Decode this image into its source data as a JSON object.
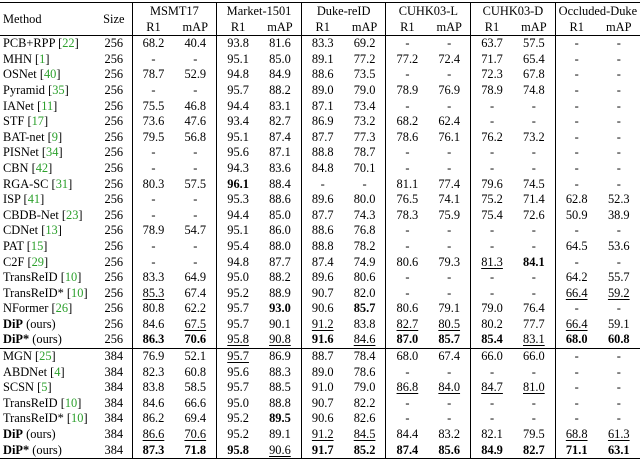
{
  "header": {
    "method": "Method",
    "size": "Size",
    "datasets": [
      "MSMT17",
      "Market-1501",
      "Duke-reID",
      "CUHK03-L",
      "CUHK03-D",
      "Occluded-Duke"
    ],
    "metrics": [
      "R1",
      "mAP"
    ]
  },
  "groups": [
    {
      "rows": [
        {
          "name": "PCB+RPP",
          "cite": "22",
          "size": "256",
          "vals": [
            "68.2",
            "40.4",
            "93.8",
            "81.6",
            "83.3",
            "69.2",
            "-",
            "-",
            "63.7",
            "57.5",
            "-",
            "-"
          ]
        },
        {
          "name": "MHN",
          "cite": "1",
          "size": "256",
          "vals": [
            "-",
            "-",
            "95.1",
            "85.0",
            "89.1",
            "77.2",
            "77.2",
            "72.4",
            "71.7",
            "65.4",
            "-",
            "-"
          ]
        },
        {
          "name": "OSNet",
          "cite": "40",
          "size": "256",
          "vals": [
            "78.7",
            "52.9",
            "94.8",
            "84.9",
            "88.6",
            "73.5",
            "-",
            "-",
            "72.3",
            "67.8",
            "-",
            "-"
          ]
        },
        {
          "name": "Pyramid",
          "cite": "35",
          "size": "256",
          "vals": [
            "-",
            "-",
            "95.7",
            "88.2",
            "89.0",
            "79.0",
            "78.9",
            "76.9",
            "78.9",
            "74.8",
            "-",
            "-"
          ]
        },
        {
          "name": "IANet",
          "cite": "11",
          "size": "256",
          "vals": [
            "75.5",
            "46.8",
            "94.4",
            "83.1",
            "87.1",
            "73.4",
            "-",
            "-",
            "-",
            "-",
            "-",
            "-"
          ]
        },
        {
          "name": "STF",
          "cite": "17",
          "size": "256",
          "vals": [
            "73.6",
            "47.6",
            "93.4",
            "82.7",
            "86.9",
            "73.2",
            "68.2",
            "62.4",
            "-",
            "-",
            "-",
            "-"
          ]
        },
        {
          "name": "BAT-net",
          "cite": "9",
          "size": "256",
          "vals": [
            "79.5",
            "56.8",
            "95.1",
            "87.4",
            "87.7",
            "77.3",
            "78.6",
            "76.1",
            "76.2",
            "73.2",
            "-",
            "-"
          ]
        },
        {
          "name": "PISNet",
          "cite": "34",
          "size": "256",
          "vals": [
            "-",
            "-",
            "95.6",
            "87.1",
            "88.8",
            "78.7",
            "-",
            "-",
            "-",
            "-",
            "-",
            "-"
          ]
        },
        {
          "name": "CBN",
          "cite": "42",
          "size": "256",
          "vals": [
            "-",
            "-",
            "94.3",
            "83.6",
            "84.8",
            "70.1",
            "-",
            "-",
            "-",
            "-",
            "-",
            "-"
          ]
        },
        {
          "name": "RGA-SC",
          "cite": "31",
          "size": "256",
          "vals": [
            "80.3",
            "57.5",
            "96.1",
            "88.4",
            "-",
            "-",
            "81.1",
            "77.4",
            "79.6",
            "74.5",
            "-",
            "-"
          ]
        },
        {
          "name": "ISP",
          "cite": "41",
          "size": "256",
          "vals": [
            "-",
            "-",
            "95.3",
            "88.6",
            "89.6",
            "80.0",
            "76.5",
            "74.1",
            "75.2",
            "71.4",
            "62.8",
            "52.3"
          ]
        },
        {
          "name": "CBDB-Net",
          "cite": "23",
          "size": "256",
          "vals": [
            "-",
            "-",
            "94.4",
            "85.0",
            "87.7",
            "74.3",
            "78.3",
            "75.9",
            "75.4",
            "72.6",
            "50.9",
            "38.9"
          ]
        },
        {
          "name": "CDNet",
          "cite": "13",
          "size": "256",
          "vals": [
            "78.9",
            "54.7",
            "95.1",
            "86.0",
            "88.6",
            "76.8",
            "-",
            "-",
            "-",
            "-",
            "-",
            "-"
          ]
        },
        {
          "name": "PAT",
          "cite": "15",
          "size": "256",
          "vals": [
            "-",
            "-",
            "95.4",
            "88.0",
            "88.8",
            "78.2",
            "-",
            "-",
            "-",
            "-",
            "64.5",
            "53.6"
          ]
        },
        {
          "name": "C2F",
          "cite": "29",
          "size": "256",
          "vals": [
            "-",
            "-",
            "94.8",
            "87.7",
            "87.4",
            "74.9",
            "80.6",
            "79.3",
            "81.3",
            "84.1",
            "-",
            "-"
          ]
        },
        {
          "name": "TransReID",
          "cite": "10",
          "size": "256",
          "vals": [
            "83.3",
            "64.9",
            "95.0",
            "88.2",
            "89.6",
            "80.6",
            "-",
            "-",
            "-",
            "-",
            "64.2",
            "55.7"
          ]
        },
        {
          "name": "TransReID*",
          "cite": "10",
          "size": "256",
          "vals": [
            "85.3",
            "67.4",
            "95.2",
            "88.9",
            "90.7",
            "82.0",
            "-",
            "-",
            "-",
            "-",
            "66.4",
            "59.2"
          ]
        },
        {
          "name": "NFormer",
          "cite": "26",
          "size": "256",
          "vals": [
            "80.8",
            "62.2",
            "95.7",
            "93.0",
            "90.6",
            "85.7",
            "80.6",
            "79.1",
            "79.0",
            "76.4",
            "-",
            "-"
          ]
        },
        {
          "name": "DiP",
          "suffix": " (ours)",
          "size": "256",
          "vals": [
            "84.6",
            "67.5",
            "95.7",
            "90.1",
            "91.2",
            "83.8",
            "82.7",
            "80.5",
            "80.2",
            "77.7",
            "66.4",
            "59.1"
          ]
        },
        {
          "name": "DiP*",
          "suffix": " (ours)",
          "size": "256",
          "vals": [
            "86.3",
            "70.6",
            "95.8",
            "90.8",
            "91.6",
            "84.6",
            "87.0",
            "85.7",
            "85.4",
            "83.1",
            "68.0",
            "60.8"
          ]
        }
      ]
    },
    {
      "rows": [
        {
          "name": "MGN",
          "cite": "25",
          "size": "384",
          "vals": [
            "76.9",
            "52.1",
            "95.7",
            "86.9",
            "88.7",
            "78.4",
            "68.0",
            "67.4",
            "66.0",
            "66.0",
            "-",
            "-"
          ]
        },
        {
          "name": "ABDNet",
          "cite": "4",
          "size": "384",
          "vals": [
            "82.3",
            "60.8",
            "95.6",
            "88.3",
            "89.0",
            "78.6",
            "-",
            "-",
            "-",
            "-",
            "-",
            "-"
          ]
        },
        {
          "name": "SCSN",
          "cite": "5",
          "size": "384",
          "vals": [
            "83.8",
            "58.5",
            "95.7",
            "88.5",
            "91.0",
            "79.0",
            "86.8",
            "84.0",
            "84.7",
            "81.0",
            "-",
            "-"
          ]
        },
        {
          "name": "TransReID",
          "cite": "10",
          "size": "384",
          "vals": [
            "84.6",
            "66.6",
            "95.0",
            "88.8",
            "90.7",
            "82.2",
            "-",
            "-",
            "-",
            "-",
            "-",
            "-"
          ]
        },
        {
          "name": "TransReID*",
          "cite": "10",
          "size": "384",
          "vals": [
            "86.2",
            "69.4",
            "95.2",
            "89.5",
            "90.6",
            "82.6",
            "-",
            "-",
            "-",
            "-",
            "-",
            "-"
          ]
        },
        {
          "name": "DiP",
          "suffix": " (ours)",
          "size": "384",
          "vals": [
            "86.6",
            "70.6",
            "95.2",
            "89.1",
            "91.2",
            "84.5",
            "84.4",
            "83.2",
            "82.1",
            "79.5",
            "68.8",
            "61.3"
          ]
        },
        {
          "name": "DiP*",
          "suffix": " (ours)",
          "size": "384",
          "vals": [
            "87.3",
            "71.8",
            "95.8",
            "90.6",
            "91.7",
            "85.2",
            "87.4",
            "85.6",
            "84.9",
            "82.7",
            "71.1",
            "63.1"
          ]
        }
      ]
    }
  ],
  "bold": [
    [
      [
        9,
        2
      ],
      [
        17,
        3
      ],
      [
        17,
        5
      ],
      [
        19,
        0
      ],
      [
        19,
        1
      ],
      [
        19,
        4
      ],
      [
        19,
        6
      ],
      [
        19,
        7
      ],
      [
        19,
        8
      ],
      [
        19,
        10
      ],
      [
        19,
        11
      ],
      [
        14,
        9
      ]
    ],
    [
      [
        6,
        0
      ],
      [
        6,
        1
      ],
      [
        6,
        2
      ],
      [
        4,
        3
      ],
      [
        6,
        4
      ],
      [
        6,
        5
      ],
      [
        6,
        6
      ],
      [
        6,
        7
      ],
      [
        6,
        8
      ],
      [
        6,
        9
      ],
      [
        6,
        10
      ],
      [
        6,
        11
      ]
    ]
  ],
  "underline": [
    [
      [
        16,
        0
      ],
      [
        18,
        1
      ],
      [
        19,
        2
      ],
      [
        19,
        3
      ],
      [
        18,
        4
      ],
      [
        19,
        5
      ],
      [
        18,
        6
      ],
      [
        18,
        7
      ],
      [
        14,
        8
      ],
      [
        19,
        9
      ],
      [
        16,
        10
      ],
      [
        18,
        10
      ],
      [
        16,
        11
      ]
    ],
    [
      [
        5,
        0
      ],
      [
        5,
        1
      ],
      [
        0,
        2
      ],
      [
        6,
        3
      ],
      [
        5,
        4
      ],
      [
        5,
        5
      ],
      [
        2,
        6
      ],
      [
        2,
        7
      ],
      [
        2,
        8
      ],
      [
        2,
        9
      ],
      [
        5,
        10
      ],
      [
        5,
        11
      ]
    ]
  ]
}
